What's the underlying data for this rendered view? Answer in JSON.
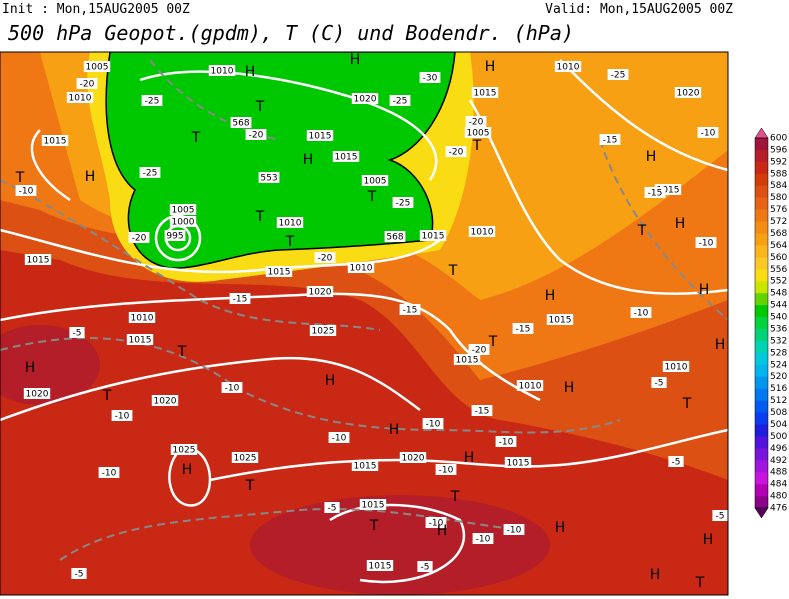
{
  "header": {
    "init": "Init : Mon,15AUG2005 00Z",
    "valid": "Valid: Mon,15AUG2005 00Z",
    "title": "500 hPa Geopot.(gpdm), T (C) und Bodendr. (hPa)"
  },
  "colorbar": {
    "labels": [
      "600",
      "596",
      "592",
      "588",
      "584",
      "580",
      "576",
      "572",
      "568",
      "564",
      "560",
      "556",
      "552",
      "548",
      "544",
      "540",
      "536",
      "532",
      "528",
      "524",
      "520",
      "516",
      "512",
      "508",
      "504",
      "500",
      "496",
      "492",
      "488",
      "484",
      "480",
      "476"
    ],
    "colors": [
      "#a0143c",
      "#b41e28",
      "#c82814",
      "#d23c0a",
      "#dc5014",
      "#e66414",
      "#f07814",
      "#f58c14",
      "#f8a014",
      "#fab41e",
      "#fcc828",
      "#fadc14",
      "#c8e600",
      "#64d200",
      "#00c800",
      "#00d23c",
      "#00d278",
      "#00d2b4",
      "#00c8dc",
      "#00b4f0",
      "#0096f0",
      "#0078f0",
      "#005af0",
      "#0a3cf0",
      "#1e1edc",
      "#5014dc",
      "#7814dc",
      "#a014dc",
      "#c814dc",
      "#b400b4",
      "#8c008c"
    ],
    "top_color": "#e0508c",
    "bottom_color": "#5a005a"
  },
  "map_labels": [
    "1005",
    "-20",
    "1010",
    "1010",
    "H",
    "-25",
    "T",
    "H",
    "-30",
    "H",
    "1010",
    "-25",
    "1020",
    "568",
    "-20",
    "T",
    "1015",
    "1020",
    "-25",
    "1015",
    "-20",
    "1005",
    "-15",
    "-10",
    "1015",
    "H",
    "1015",
    "T",
    "-20",
    "H",
    "T",
    "H",
    "-10",
    "-25",
    "553",
    "1005",
    "T",
    "-25",
    "1015",
    "-15",
    "1005",
    "1000",
    "995",
    "-20",
    "T",
    "1010",
    "T",
    "568",
    "1015",
    "1010",
    "T",
    "H",
    "-10",
    "1015",
    "-20",
    "1010",
    "T",
    "1015",
    "-15",
    "1020",
    "H",
    "-15",
    "1010",
    "1015",
    "-15",
    "-10",
    "H",
    "-5",
    "1015",
    "1025",
    "T",
    "-20",
    "1015",
    "T",
    "H",
    "1020",
    "T",
    "H",
    "-10",
    "1020",
    "1010",
    "H",
    "-5",
    "1010",
    "H",
    "-10",
    "-15",
    "T",
    "H",
    "-10",
    "-10",
    "1025",
    "-10",
    "1025",
    "H",
    "1020",
    "1015",
    "1015",
    "-10",
    "-5",
    "H",
    "-10",
    "T",
    "T",
    "1015",
    "-5",
    "T",
    "-10",
    "H",
    "-10",
    "-10",
    "H",
    "H",
    "-5",
    "1015",
    "-5",
    "H",
    "T",
    "-5"
  ]
}
